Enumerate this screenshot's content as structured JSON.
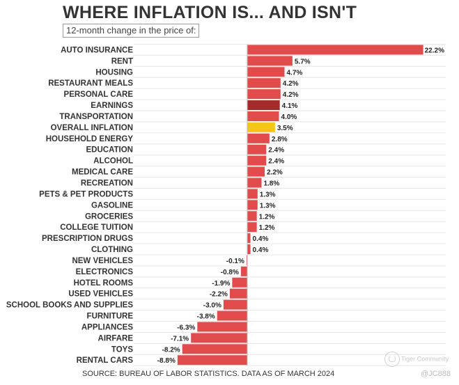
{
  "chart_data": {
    "type": "bar",
    "orientation": "horizontal",
    "title": "WHERE INFLATION IS... AND ISN'T",
    "subtitle": "12-month change in the price of:",
    "source": "SOURCE: BUREAU OF LABOR STATISTICS. DATA AS OF MARCH 2024",
    "unit_suffix": "%",
    "xlim": [
      -9.5,
      22.2
    ],
    "grid": true,
    "colors": {
      "default": "#e24b4b",
      "earnings": "#a52a2a",
      "overall": "#f5c518",
      "value_label": "#222222"
    },
    "categories": [
      "AUTO INSURANCE",
      "RENT",
      "HOUSING",
      "RESTAURANT MEALS",
      "PERSONAL CARE",
      "EARNINGS",
      "TRANSPORTATION",
      "OVERALL INFLATION",
      "HOUSEHOLD ENERGY",
      "EDUCATION",
      "ALCOHOL",
      "MEDICAL CARE",
      "RECREATION",
      "PETS & PET PRODUCTS",
      "GASOLINE",
      "GROCERIES",
      "COLLEGE TUITION",
      "PRESCRIPTION DRUGS",
      "CLOTHING",
      "NEW VEHICLES",
      "ELECTRONICS",
      "HOTEL ROOMS",
      "USED VEHICLES",
      "SCHOOL BOOKS AND SUPPLIES",
      "FURNITURE",
      "APPLIANCES",
      "AIRFARE",
      "TOYS",
      "RENTAL CARS"
    ],
    "values": [
      22.2,
      5.7,
      4.7,
      4.2,
      4.2,
      4.1,
      4.0,
      3.5,
      2.8,
      2.4,
      2.4,
      2.2,
      1.8,
      1.3,
      1.3,
      1.2,
      1.2,
      0.4,
      0.4,
      -0.1,
      -0.8,
      -1.9,
      -2.2,
      -3.0,
      -3.8,
      -6.3,
      -7.1,
      -8.2,
      -8.8
    ],
    "highlight": {
      "EARNINGS": "earnings",
      "OVERALL INFLATION": "overall"
    }
  },
  "watermark": {
    "brand": "Tiger Community",
    "handle": "@JC888"
  }
}
